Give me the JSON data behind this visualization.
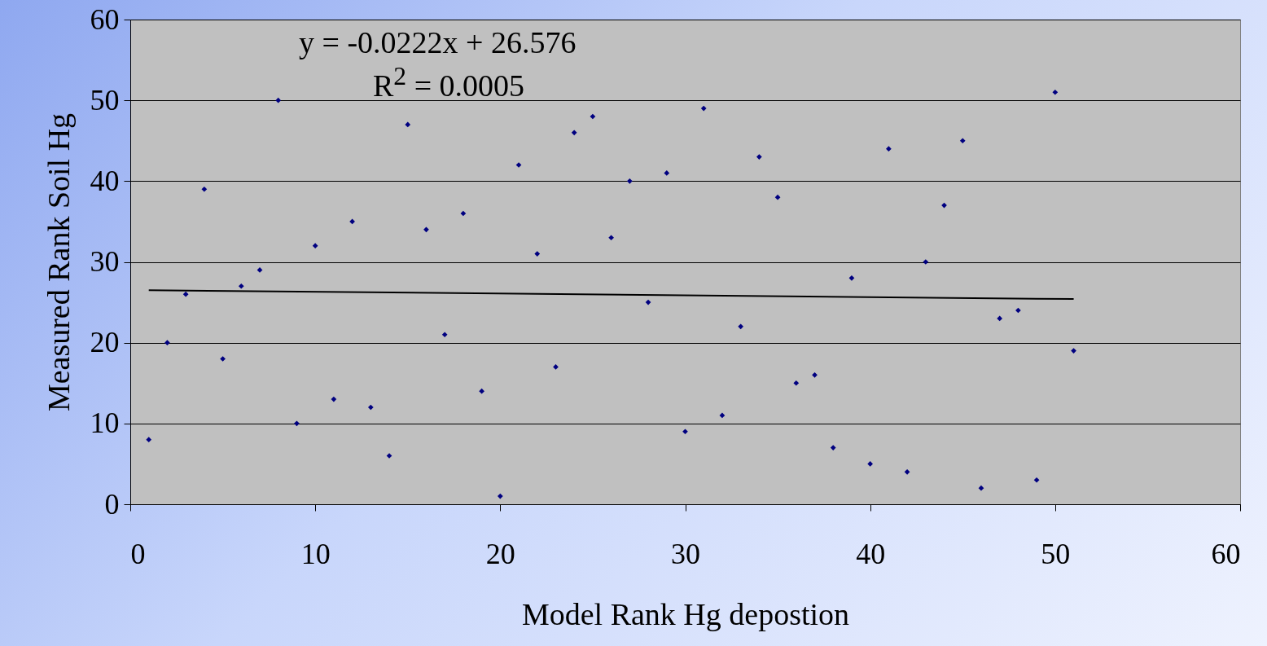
{
  "chart_data": {
    "type": "scatter",
    "xlabel": "Model Rank Hg depostion",
    "ylabel": "Measured Rank Soil Hg",
    "x": [
      1,
      2,
      3,
      4,
      5,
      6,
      7,
      8,
      9,
      10,
      11,
      12,
      13,
      14,
      15,
      16,
      17,
      18,
      19,
      20,
      21,
      22,
      23,
      24,
      25,
      26,
      27,
      28,
      29,
      30,
      31,
      32,
      33,
      34,
      35,
      36,
      37,
      38,
      39,
      40,
      41,
      42,
      43,
      44,
      45,
      46,
      47,
      48,
      49,
      50,
      51
    ],
    "series": [
      {
        "color": "#000080",
        "marker": "diamond",
        "values": [
          8,
          20,
          26,
          39,
          18,
          27,
          29,
          50,
          10,
          32,
          13,
          35,
          12,
          6,
          47,
          34,
          21,
          36,
          14,
          1,
          42,
          31,
          17,
          46,
          48,
          33,
          40,
          25,
          41,
          9,
          49,
          11,
          22,
          43,
          38,
          15,
          16,
          7,
          28,
          5,
          44,
          4,
          30,
          37,
          45,
          2,
          23,
          24,
          3,
          51,
          19
        ]
      },
      {
        "type": "line",
        "color": "#000000",
        "line_style": "solid",
        "x": [
          1,
          51
        ],
        "values": [
          26.5,
          25.4
        ]
      }
    ],
    "xlim": [
      0,
      60
    ],
    "xticks": [
      0,
      10,
      20,
      30,
      40,
      50,
      60
    ],
    "ylim": [
      0,
      60
    ],
    "yticks": [
      0,
      10,
      20,
      30,
      40,
      50,
      60
    ],
    "grid": "y",
    "annotations": [
      "y = -0.0222x + 26.576",
      "R$^{2}$ = 0.0005"
    ]
  }
}
